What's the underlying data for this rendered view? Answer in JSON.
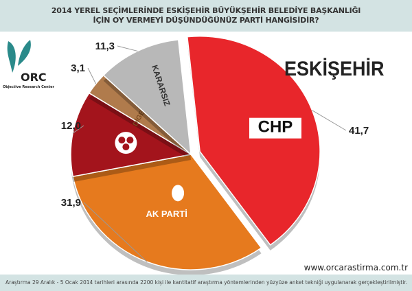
{
  "header": {
    "line1": "2014 YEREL SEÇİMLERİNDE ESKİŞEHİR BÜYÜKŞEHİR BELEDİYE BAŞKANLIĞI",
    "line2": "İÇİN OY VERMEYİ DÜŞÜNDÜĞÜNÜZ PARTİ HANGİSİDİR?"
  },
  "logo": {
    "text": "ORC",
    "subtitle": "Objective Research Center"
  },
  "city": "ESKİŞEHİR",
  "url": "www.orcarastirma.com.tr",
  "footer": "Araştırma 29 Aralık - 5 Ocak 2014 tarihleri arasında 2200 kişi ile kantitatif araştırma yöntemlerinden yüzyüze anket tekniği uygulanarak gerçekleştirilmiştir.",
  "chart_data": {
    "type": "pie",
    "categories": [
      "CHP",
      "AK PARTİ",
      "MHP",
      "DİGER",
      "KARARSIZ"
    ],
    "values": [
      41.7,
      31.9,
      12.0,
      3.1,
      11.3
    ],
    "value_labels": [
      "41,7",
      "31,9",
      "12,0",
      "3,1",
      "11,3"
    ],
    "slice_labels": [
      "CHP",
      "AK PARTİ",
      "",
      "DİGER",
      "KARARSIZ"
    ],
    "colors": [
      "#e8262b",
      "#e67a1e",
      "#a3141c",
      "#b07b4c",
      "#b8b8b8"
    ],
    "exploded": "CHP"
  }
}
